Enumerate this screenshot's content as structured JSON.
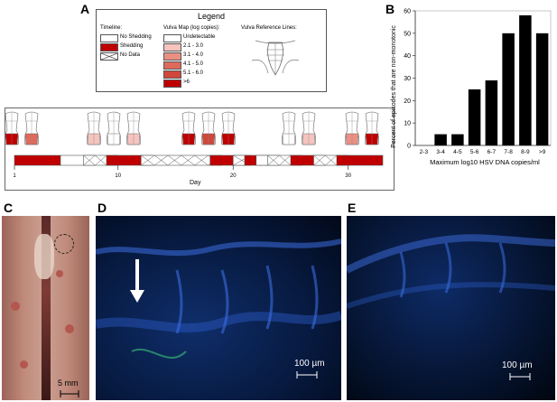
{
  "panels": {
    "A": "A",
    "B": "B",
    "C": "C",
    "D": "D",
    "E": "E"
  },
  "legend": {
    "title": "Legend",
    "timeline_heading": "Timeline:",
    "timeline_items": [
      "No Shedding",
      "Shedding",
      "No Data"
    ],
    "vulva_heading": "Vulva Map (log copies):",
    "vulva_items": [
      "Undetectable",
      "2.1 - 3.0",
      "3.1 - 4.0",
      "4.1 - 5.0",
      "5.1 - 6.0",
      ">6"
    ],
    "vulva_colors": [
      "#ffffff",
      "#f6c3be",
      "#ec8f83",
      "#df6a5c",
      "#d0483b",
      "#c00000"
    ],
    "reference_heading": "Vulva Reference Lines:"
  },
  "timeline": {
    "axis_label": "Day",
    "ticks": [
      "1",
      "10",
      "20",
      "30"
    ],
    "tick_days": [
      1,
      10,
      20,
      30
    ],
    "days_total": 33,
    "segments": [
      {
        "start": 1,
        "end": 4,
        "state": "shedding"
      },
      {
        "start": 5,
        "end": 7,
        "state": "no_shedding"
      },
      {
        "start": 7,
        "end": 9,
        "state": "no_data"
      },
      {
        "start": 9,
        "end": 12,
        "state": "shedding"
      },
      {
        "start": 12,
        "end": 18,
        "state": "no_data"
      },
      {
        "start": 18,
        "end": 20,
        "state": "shedding"
      },
      {
        "start": 20,
        "end": 20.5,
        "state": "no_data"
      },
      {
        "start": 21,
        "end": 22,
        "state": "shedding"
      },
      {
        "start": 22,
        "end": 23,
        "state": "no_shedding"
      },
      {
        "start": 23,
        "end": 25,
        "state": "no_data"
      },
      {
        "start": 25,
        "end": 27,
        "state": "shedding"
      },
      {
        "start": 27,
        "end": 29,
        "state": "no_data"
      },
      {
        "start": 29,
        "end": 33,
        "state": "shedding"
      }
    ],
    "shedding_color": "#c00000"
  },
  "chart_data": {
    "type": "bar",
    "title": "",
    "xlabel": "Maximum log10 HSV DNA copies/ml",
    "ylabel": "Percent of episodes that are non-monotonic",
    "categories": [
      "2-3",
      "3-4",
      "4-5",
      "5-6",
      "6-7",
      "7-8",
      "8-9",
      ">9"
    ],
    "values": [
      0,
      5,
      5,
      25,
      29,
      50,
      58,
      50
    ],
    "ylim": [
      0,
      60
    ],
    "yticks": [
      0,
      10,
      20,
      30,
      40,
      50,
      60
    ],
    "grid": false,
    "bar_color": "#000000"
  },
  "photo_C": {
    "scale_label": "5 mm"
  },
  "photo_D": {
    "scale_label": "100 µm"
  },
  "photo_E": {
    "scale_label": "100 µm"
  }
}
